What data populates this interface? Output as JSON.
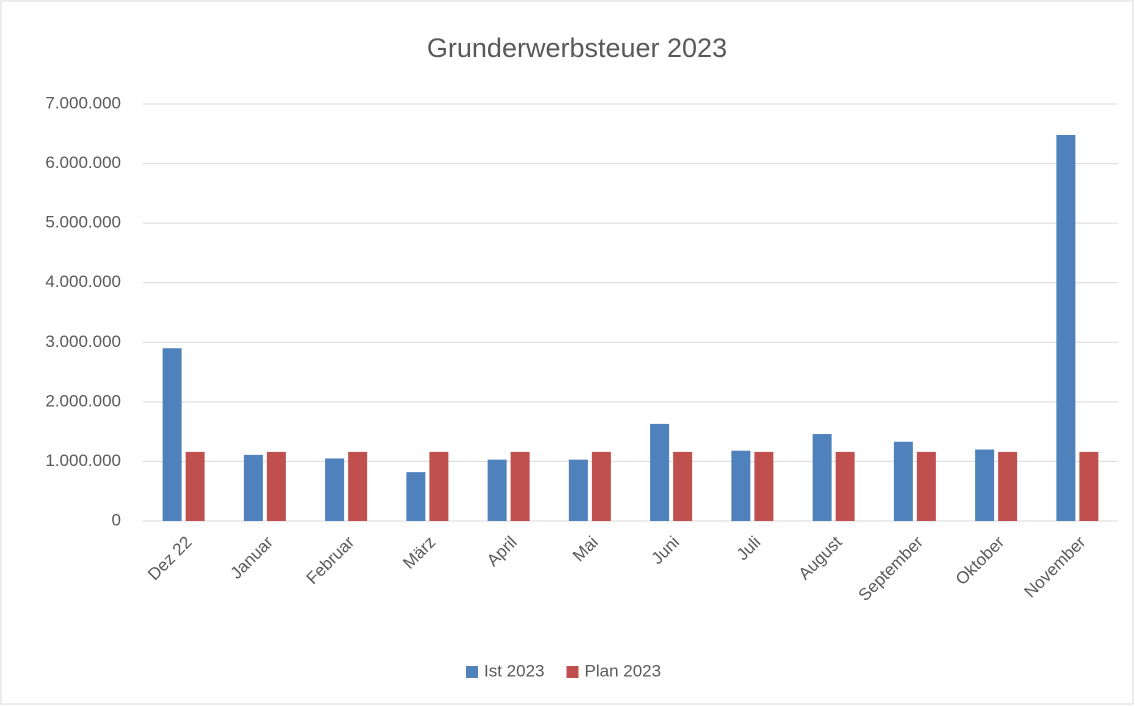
{
  "chart_data": {
    "type": "bar",
    "title": "Grunderwerbsteuer 2023",
    "categories": [
      "Dez 22",
      "Januar",
      "Februar",
      "März",
      "April",
      "Mai",
      "Juni",
      "Juli",
      "August",
      "September",
      "Oktober",
      "November"
    ],
    "series": [
      {
        "name": "Ist 2023",
        "color": "#4f81bd",
        "values": [
          2900000,
          1110000,
          1050000,
          820000,
          1030000,
          1030000,
          1630000,
          1180000,
          1460000,
          1330000,
          1200000,
          6480000
        ]
      },
      {
        "name": "Plan 2023",
        "color": "#c0504d",
        "values": [
          1160000,
          1160000,
          1160000,
          1160000,
          1160000,
          1160000,
          1160000,
          1160000,
          1160000,
          1160000,
          1160000,
          1160000
        ]
      }
    ],
    "ylim": [
      0,
      7000000
    ],
    "yticks": [
      0,
      {
        "value": 1000000,
        "label": "1.000.000"
      },
      {
        "value": 2000000,
        "label": "2.000.000"
      },
      {
        "value": 3000000,
        "label": "3.000.000"
      },
      {
        "value": 4000000,
        "label": "4.000.000"
      },
      {
        "value": 5000000,
        "label": "5.000.000"
      },
      {
        "value": 6000000,
        "label": "6.000.000"
      },
      {
        "value": 7000000,
        "label": "7.000.000"
      }
    ],
    "grid": true,
    "legend": "bottom"
  }
}
